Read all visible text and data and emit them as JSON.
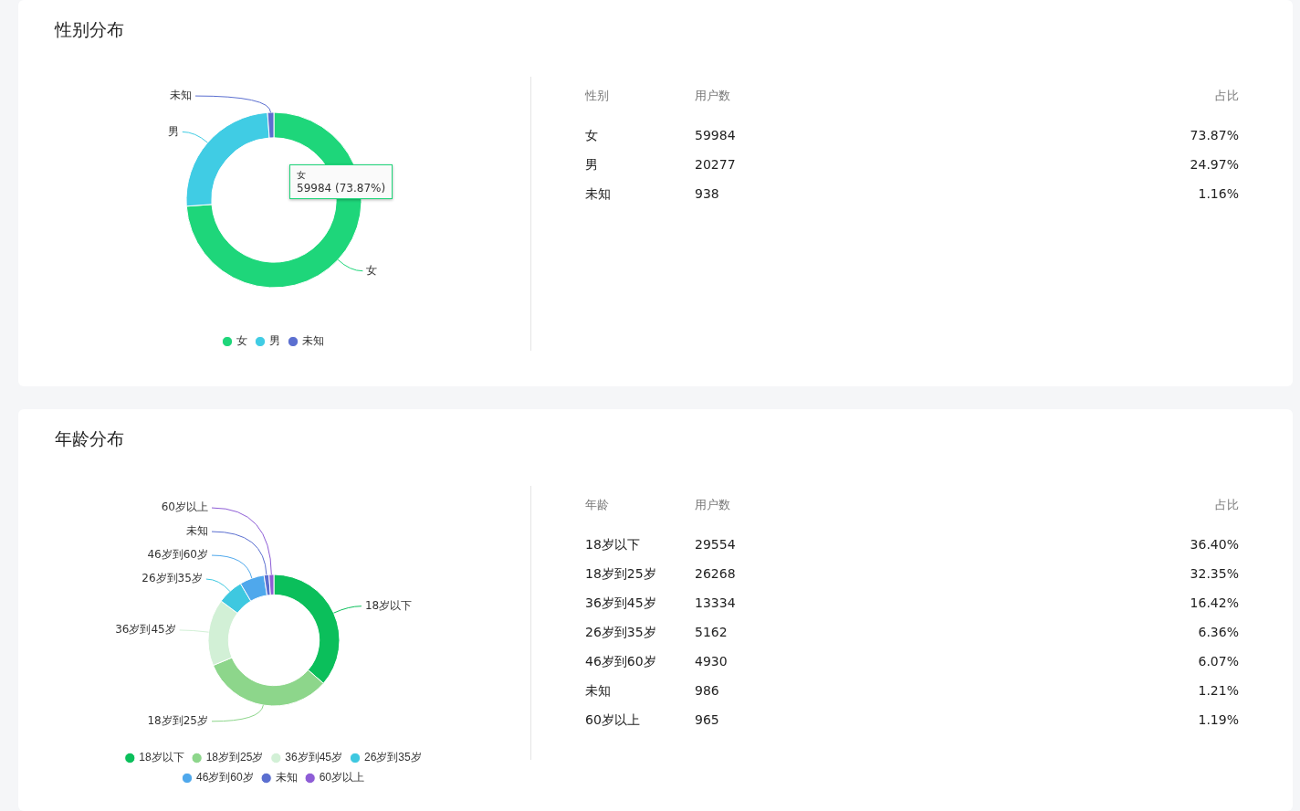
{
  "chart_data": [
    {
      "type": "donut",
      "title": "性别分布",
      "categories": [
        "女",
        "男",
        "未知"
      ],
      "values": [
        73.87,
        24.97,
        1.16
      ],
      "colors": [
        "#1ed67a",
        "#40cce4",
        "#5b6fd0"
      ],
      "legend": "bottom",
      "annotations": [
        {
          "text": "59984 (73.87%)",
          "x": "女"
        }
      ]
    },
    {
      "type": "other",
      "annotations": [
        "性别",
        "用户数",
        "占比",
        "女",
        "59984",
        "73.87%",
        "男",
        "20277",
        "24.97%",
        "未知",
        "938",
        "1.16%"
      ]
    },
    {
      "type": "donut",
      "title": "年龄分布",
      "categories": [
        "18岁以下",
        "18岁到25岁",
        "36岁到45岁",
        "26岁到35岁",
        "46岁到60岁",
        "未知",
        "60岁以上"
      ],
      "values": [
        36.4,
        32.35,
        16.42,
        6.36,
        6.07,
        1.21,
        1.19
      ],
      "colors": [
        "#0bbf5b",
        "#8dd68b",
        "#d2f0d6",
        "#3ec8e0",
        "#4fa8ec",
        "#5b6fd0",
        "#8e5dd6"
      ],
      "legend": "bottom"
    },
    {
      "type": "other",
      "annotations": [
        "年龄",
        "用户数",
        "占比",
        "18岁以下",
        "29554",
        "36.40%",
        "18岁到25岁",
        "26268",
        "32.35%",
        "36岁到45岁",
        "13334",
        "16.42%",
        "26岁到35岁",
        "5162",
        "6.36%",
        "46岁到60岁",
        "4930",
        "6.07%",
        "未知",
        "986",
        "1.21%",
        "60岁以上",
        "965",
        "1.19%"
      ]
    }
  ]
}
